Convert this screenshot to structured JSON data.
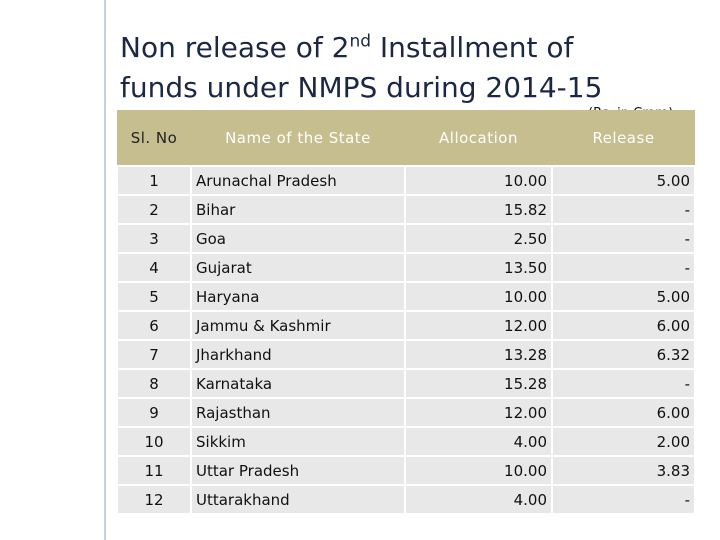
{
  "header": {
    "title_start": "Non release of 2",
    "title_sup": "nd",
    "title_end": " Installment  of",
    "title_line2": "funds under NMPS during 2014-15",
    "unit_note": "(Rs. in Crore)"
  },
  "table": {
    "columns": [
      "Sl. No",
      "Name of the State",
      "Allocation",
      "Release"
    ],
    "rows": [
      [
        "1",
        "Arunachal Pradesh",
        "10.00",
        "5.00"
      ],
      [
        "2",
        "Bihar",
        "15.82",
        "-"
      ],
      [
        "3",
        "Goa",
        "2.50",
        "-"
      ],
      [
        "4",
        "Gujarat",
        "13.50",
        "-"
      ],
      [
        "5",
        "Haryana",
        "10.00",
        "5.00"
      ],
      [
        "6",
        "Jammu & Kashmir",
        "12.00",
        "6.00"
      ],
      [
        "7",
        "Jharkhand",
        "13.28",
        "6.32"
      ],
      [
        "8",
        "Karnataka",
        "15.28",
        "-"
      ],
      [
        "9",
        "Rajasthan",
        "12.00",
        "6.00"
      ],
      [
        "10",
        "Sikkim",
        "4.00",
        "2.00"
      ],
      [
        "11",
        "Uttar Pradesh",
        "10.00",
        "3.83"
      ],
      [
        "12",
        "Uttarakhand",
        "4.00",
        "-"
      ]
    ]
  }
}
